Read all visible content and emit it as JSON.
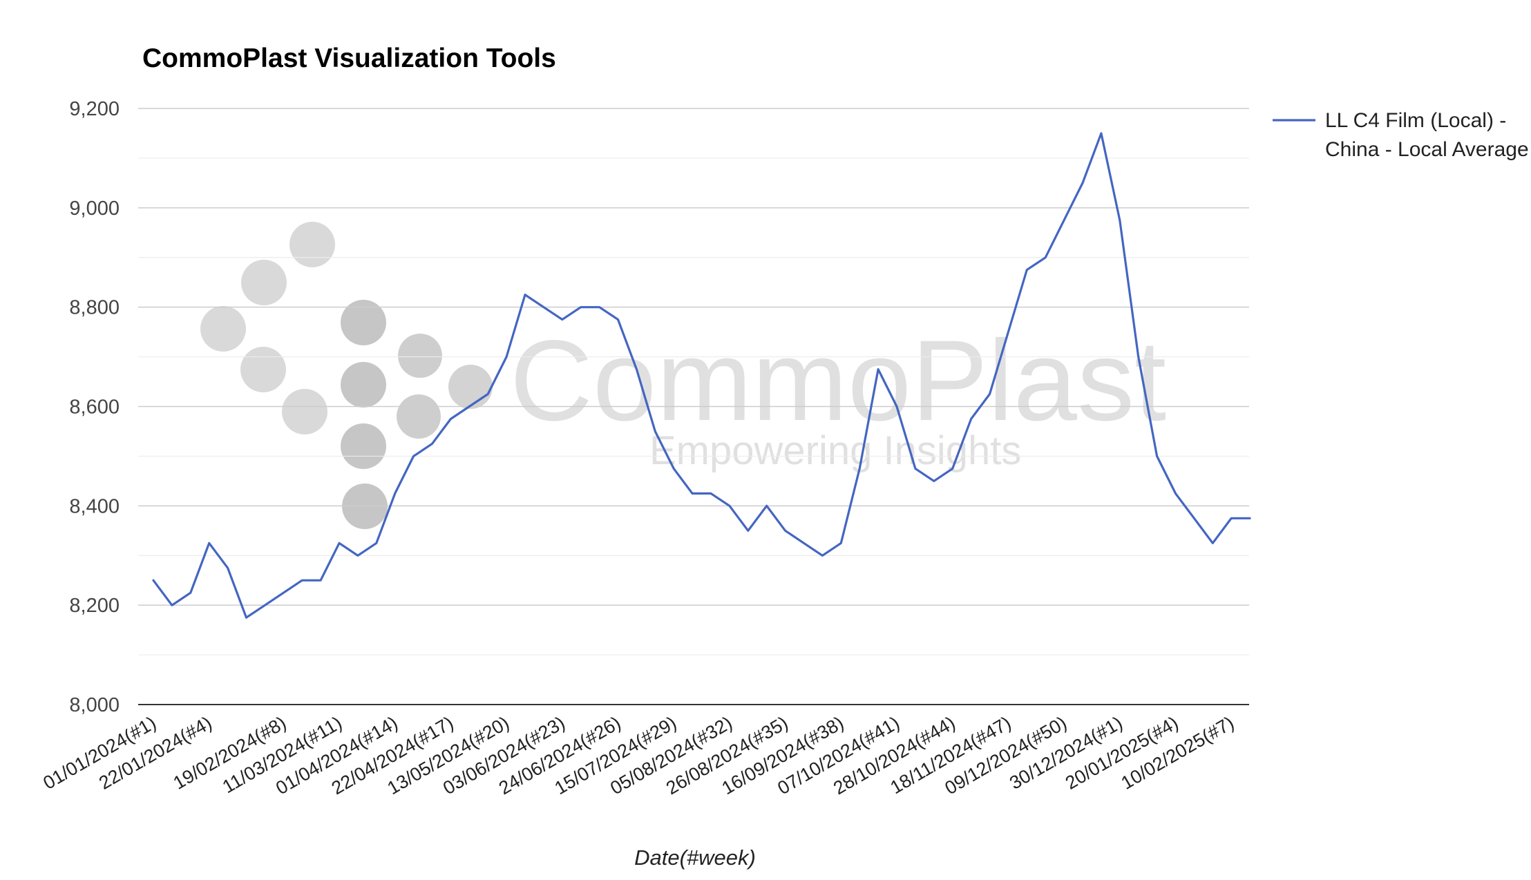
{
  "chart_data": {
    "type": "line",
    "title": "CommoPlast Visualization Tools",
    "xlabel": "Date(#week)",
    "ylabel": "",
    "ylim": [
      8000,
      9200
    ],
    "yticks": [
      "8,000",
      "8,200",
      "8,400",
      "8,600",
      "8,800",
      "9,000",
      "9,200"
    ],
    "grid": true,
    "legend_position": "right",
    "x_tick_labels": [
      "01/01/2024(#1)",
      "22/01/2024(#4)",
      "19/02/2024(#8)",
      "11/03/2024(#11)",
      "01/04/2024(#14)",
      "22/04/2024(#17)",
      "13/05/2024(#20)",
      "03/06/2024(#23)",
      "24/06/2024(#26)",
      "15/07/2024(#29)",
      "05/08/2024(#32)",
      "26/08/2024(#35)",
      "16/09/2024(#38)",
      "07/10/2024(#41)",
      "28/10/2024(#44)",
      "18/11/2024(#47)",
      "09/12/2024(#50)",
      "30/12/2024(#1)",
      "20/01/2025(#4)",
      "10/02/2025(#7)"
    ],
    "series": [
      {
        "name": "LL C4 Film (Local) - China - Local Average",
        "color": "#4466c2",
        "values": [
          8250,
          8200,
          8225,
          8325,
          8275,
          8175,
          8200,
          8225,
          8250,
          8250,
          8325,
          8300,
          8325,
          8425,
          8500,
          8525,
          8575,
          8600,
          8625,
          8700,
          8825,
          8800,
          8775,
          8800,
          8800,
          8775,
          8675,
          8550,
          8475,
          8425,
          8425,
          8400,
          8350,
          8400,
          8350,
          8325,
          8300,
          8325,
          8475,
          8675,
          8600,
          8475,
          8450,
          8475,
          8575,
          8625,
          8750,
          8875,
          8900,
          8975,
          9050,
          9150,
          8975,
          8700,
          8500,
          8425,
          8375,
          8325,
          8375,
          8375
        ]
      }
    ]
  },
  "watermark": {
    "brand": "CommoPlast",
    "tagline": "Empowering Insights"
  }
}
